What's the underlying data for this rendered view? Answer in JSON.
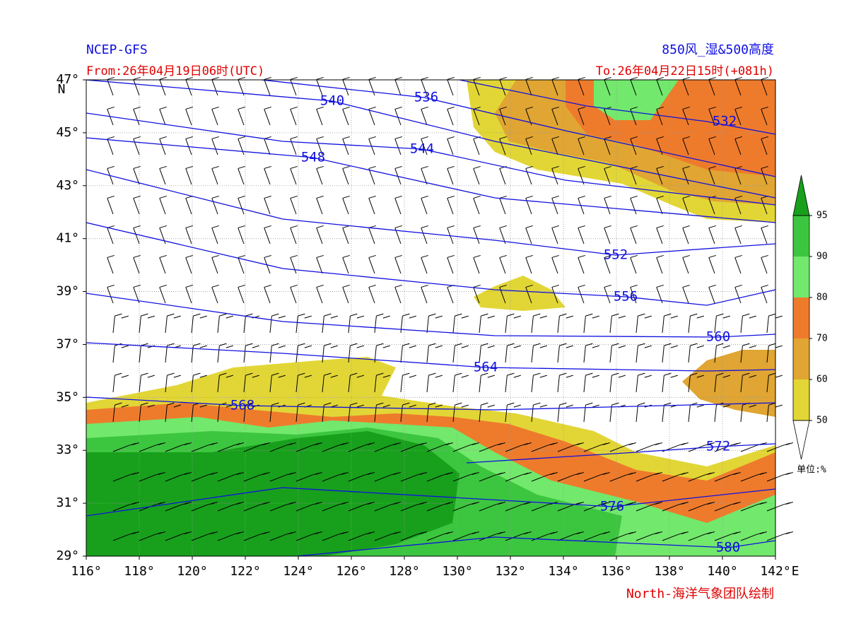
{
  "header": {
    "model": "NCEP-GFS",
    "product": "850风_湿&500高度",
    "from": "From:26年04月19日06时(UTC)",
    "to": "To:26年04月22日15时(+081h)",
    "credit": "North-海洋气象团队绘制"
  },
  "map": {
    "xlim": [
      116,
      142
    ],
    "ylim": [
      29,
      47
    ],
    "xticks": [
      {
        "value": 116,
        "label": "116°"
      },
      {
        "value": 118,
        "label": "118°"
      },
      {
        "value": 120,
        "label": "120°"
      },
      {
        "value": 122,
        "label": "122°"
      },
      {
        "value": 124,
        "label": "124°"
      },
      {
        "value": 126,
        "label": "126°"
      },
      {
        "value": 128,
        "label": "128°"
      },
      {
        "value": 130,
        "label": "130°"
      },
      {
        "value": 132,
        "label": "132°"
      },
      {
        "value": 134,
        "label": "134°"
      },
      {
        "value": 136,
        "label": "136°"
      },
      {
        "value": 138,
        "label": "138°"
      },
      {
        "value": 140,
        "label": "140°"
      },
      {
        "value": 142,
        "label": "142°"
      }
    ],
    "yticks": [
      {
        "value": 29,
        "label": "29°"
      },
      {
        "value": 31,
        "label": "31°"
      },
      {
        "value": 33,
        "label": "33°"
      },
      {
        "value": 35,
        "label": "35°"
      },
      {
        "value": 37,
        "label": "37°"
      },
      {
        "value": 39,
        "label": "39°"
      },
      {
        "value": 41,
        "label": "41°"
      },
      {
        "value": 43,
        "label": "43°"
      },
      {
        "value": 45,
        "label": "45°"
      },
      {
        "value": 47,
        "label": "47°"
      }
    ],
    "x_unit": "E",
    "y_unit": "N",
    "grid": true,
    "contours": [
      532,
      536,
      540,
      544,
      548,
      552,
      556,
      560,
      564,
      568,
      572,
      576,
      580
    ],
    "contour_color": "#1010e0"
  },
  "colorbar": {
    "levels": [
      50,
      60,
      70,
      80,
      90,
      95
    ],
    "colors": [
      "#e2d636",
      "#e0a532",
      "#ee7b2c",
      "#72e86c",
      "#3cc63f",
      "#18a01c"
    ],
    "unit": "单位:%"
  }
}
